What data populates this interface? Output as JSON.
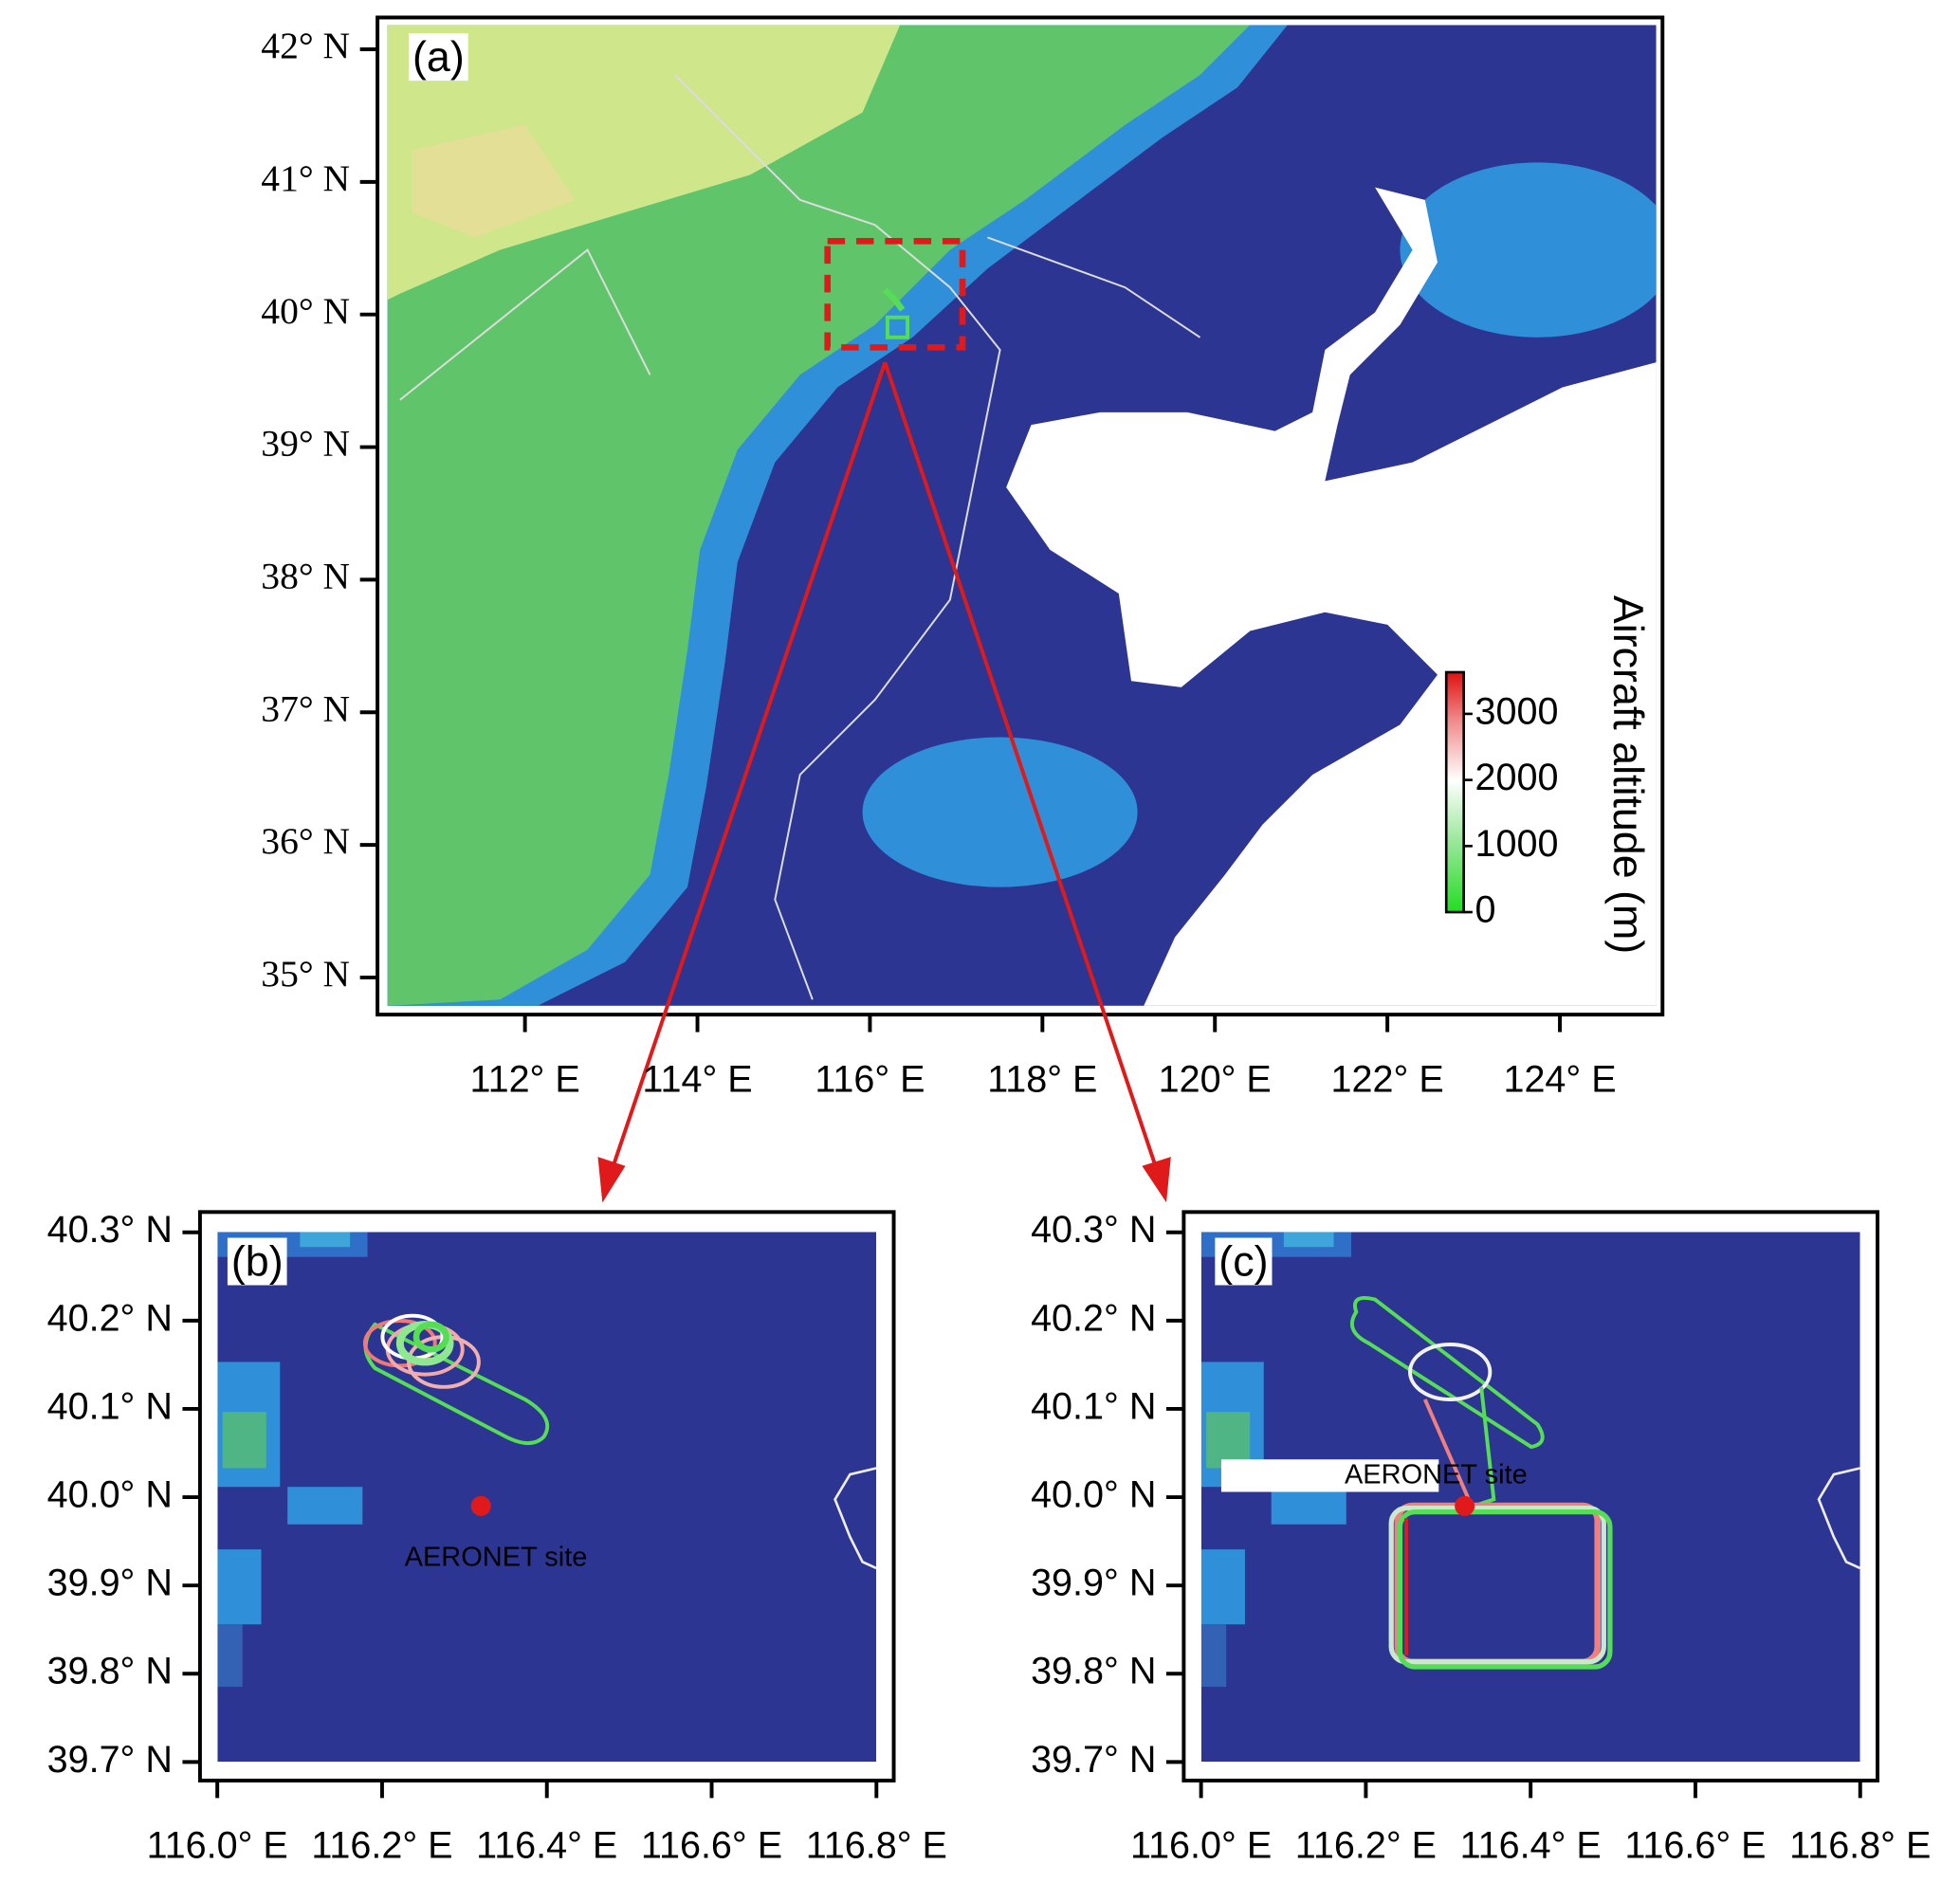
{
  "panels": [
    {
      "label": "(a)",
      "xlim": [
        110.29,
        125.19
      ],
      "ylim": [
        34.72,
        42.24
      ],
      "xticks": [
        {
          "value": 112,
          "label": "112° E"
        },
        {
          "value": 114,
          "label": "114° E"
        },
        {
          "value": 116,
          "label": "116° E"
        },
        {
          "value": 118,
          "label": "118° E"
        },
        {
          "value": 120,
          "label": "120° E"
        },
        {
          "value": 122,
          "label": "122° E"
        },
        {
          "value": 124,
          "label": "124° E"
        }
      ],
      "yticks": [
        {
          "value": 35,
          "label": "35° N"
        },
        {
          "value": 36,
          "label": "36° N"
        },
        {
          "value": 37,
          "label": "37° N"
        },
        {
          "value": 38,
          "label": "38° N"
        },
        {
          "value": 39,
          "label": "39° N"
        },
        {
          "value": 40,
          "label": "40° N"
        },
        {
          "value": 41,
          "label": "41° N"
        },
        {
          "value": 42,
          "label": "42° N"
        }
      ],
      "colorbar": {
        "title": "Aircraft altitude (m)",
        "lim": [
          0,
          3630
        ],
        "ticks": [
          0,
          1000,
          2000,
          3000
        ]
      }
    },
    {
      "label": "(b)",
      "xlim": [
        115.979,
        116.821
      ],
      "ylim": [
        39.679,
        40.323
      ],
      "xticks": [
        {
          "value": 116.0,
          "label": "116.0° E"
        },
        {
          "value": 116.2,
          "label": "116.2° E"
        },
        {
          "value": 116.4,
          "label": "116.4° E"
        },
        {
          "value": 116.6,
          "label": "116.6° E"
        },
        {
          "value": 116.8,
          "label": "116.8° E"
        }
      ],
      "yticks": [
        {
          "value": 39.7,
          "label": "39.7° N"
        },
        {
          "value": 39.8,
          "label": "39.8° N"
        },
        {
          "value": 39.9,
          "label": "39.9° N"
        },
        {
          "value": 40.0,
          "label": "40.0° N"
        },
        {
          "value": 40.1,
          "label": "40.1° N"
        },
        {
          "value": 40.2,
          "label": "40.2° N"
        },
        {
          "value": 40.3,
          "label": "40.3° N"
        }
      ],
      "site": {
        "name": "AERONET site",
        "lon": 116.32,
        "lat": 39.99
      }
    },
    {
      "label": "(c)",
      "xlim": [
        115.979,
        116.821
      ],
      "ylim": [
        39.679,
        40.323
      ],
      "xticks": [
        {
          "value": 116.0,
          "label": "116.0° E"
        },
        {
          "value": 116.2,
          "label": "116.2° E"
        },
        {
          "value": 116.4,
          "label": "116.4° E"
        },
        {
          "value": 116.6,
          "label": "116.6° E"
        },
        {
          "value": 116.8,
          "label": "116.8° E"
        }
      ],
      "yticks": [
        {
          "value": 39.7,
          "label": "39.7° N"
        },
        {
          "value": 39.8,
          "label": "39.8° N"
        },
        {
          "value": 39.9,
          "label": "39.9° N"
        },
        {
          "value": 40.0,
          "label": "40.0° N"
        },
        {
          "value": 40.1,
          "label": "40.1° N"
        },
        {
          "value": 40.2,
          "label": "40.2° N"
        },
        {
          "value": 40.3,
          "label": "40.3° N"
        }
      ],
      "site": {
        "name": "AERONET site",
        "lon": 116.32,
        "lat": 39.99
      }
    }
  ]
}
